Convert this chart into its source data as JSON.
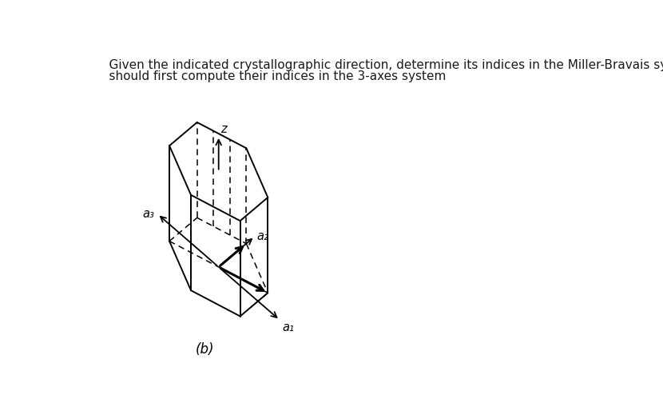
{
  "title_line1": "    Given the indicated crystallographic direction, determine its indices in the Miller-Bravais system.  Hint:  You",
  "title_line2": "    should first compute their indices in the 3-axes system",
  "label_b": "(b)",
  "label_z": "z",
  "label_a1": "a₁",
  "label_a2": "a₂",
  "label_a3": "a₃",
  "bg_color": "#ffffff",
  "line_color": "#000000",
  "fontsize_title": 11.0,
  "fontsize_labels": 11.5
}
